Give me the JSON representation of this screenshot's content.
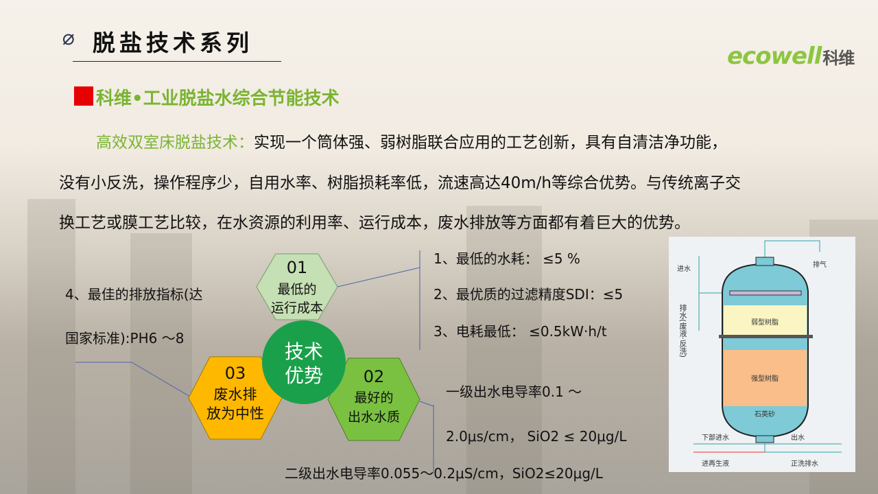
{
  "header": {
    "icon": "phi-icon",
    "title": "脱盐技术系列",
    "logo_text": "ecowell",
    "logo_cn": "科维"
  },
  "subtitle": "科维•工业脱盐水综合节能技术",
  "paragraph": {
    "highlight": "高效双室床脱盐技术：",
    "line1": "实现一个筒体强、弱树脂联合应用的工艺创新，具有自清洁净功能，",
    "line2": "没有小反洗，操作程序少，自用水率、树脂损耗率低，流速高达40m/h等综合优势。与传统离子交",
    "line3": "换工艺或膜工艺比较，在水资源的利用率、运行成本，废水排放等方面都有着巨大的优势。"
  },
  "hexes": {
    "center": {
      "line1": "技术",
      "line2": "优势",
      "color": "#1aa04a"
    },
    "h01": {
      "num": "01",
      "line1": "最低的",
      "line2": "运行成本",
      "color": "#c5e0b4"
    },
    "h02": {
      "num": "02",
      "line1": "最好的",
      "line2": "出水水质",
      "color": "#7ac142"
    },
    "h03": {
      "num": "03",
      "line1": "废水排",
      "line2": "放为中性",
      "color": "#ffb800"
    }
  },
  "points": {
    "p1": "1、最低的水耗： ≤5 %",
    "p2": "2、最优质的过滤精度SDI：≤5",
    "p3": "3、电耗最低： ≤0.5kW·h/t",
    "p4a": "4、最佳的排放指标(达",
    "p4b": "国家标准):PH6 ～8",
    "q1": "一级出水电导率0.1 ～",
    "q2": "2.0μs/cm， SiO2 ≤ 20μg/L",
    "q3": "二级出水电导率0.055～0.2μS/cm，SiO2≤20μg/L"
  },
  "diagram": {
    "inlet": "进水",
    "vent": "排气",
    "drain": "排水(废液·反洗)",
    "weak": "弱型树脂",
    "strong": "强型树脂",
    "sand": "石英砂",
    "bottom_in": "下部进水",
    "outlet": "出水",
    "regen": "进再生液",
    "rinse": "正洗排水"
  }
}
